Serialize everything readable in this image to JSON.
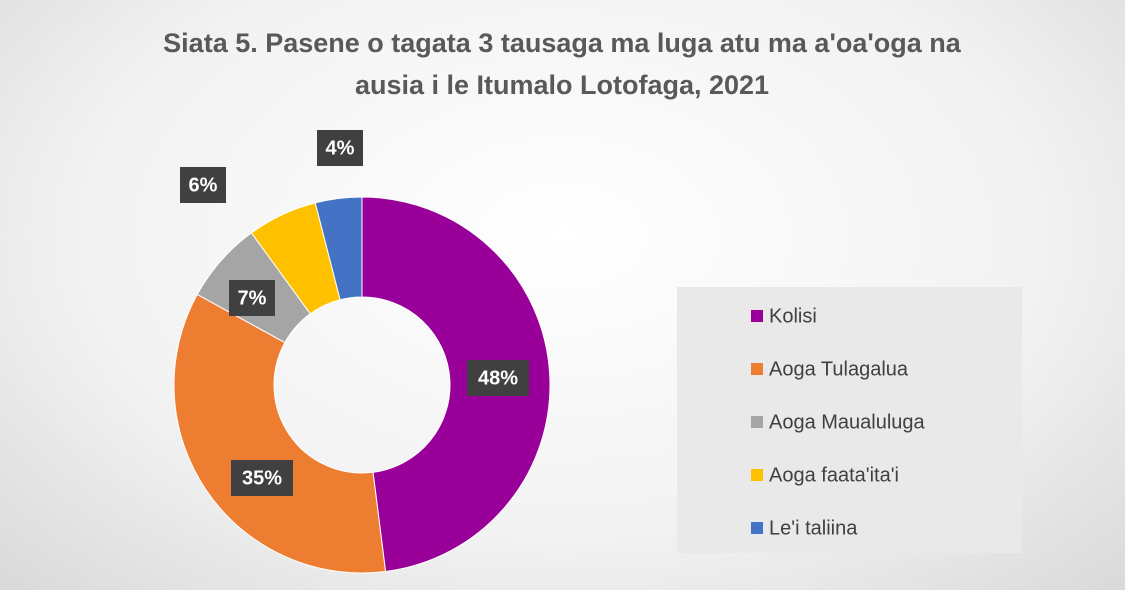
{
  "chart_data": {
    "type": "donut",
    "title": "Siata 5. Pasene o tagata 3 tausaga ma luga atu ma a'oa'oga na ausia i le Itumalo Lotofaga, 2021",
    "categories": [
      "Kolisi",
      "Aoga Tulagalua",
      "Aoga Maualuluga",
      "Aoga faata'ita'i",
      "Le'i taliina"
    ],
    "values": [
      48,
      35,
      7,
      6,
      4
    ],
    "value_labels": [
      "48%",
      "35%",
      "7%",
      "6%",
      "4%"
    ],
    "colors": [
      "#990099",
      "#ed7d31",
      "#a5a5a5",
      "#ffc000",
      "#4472c4"
    ],
    "legend": "right"
  }
}
